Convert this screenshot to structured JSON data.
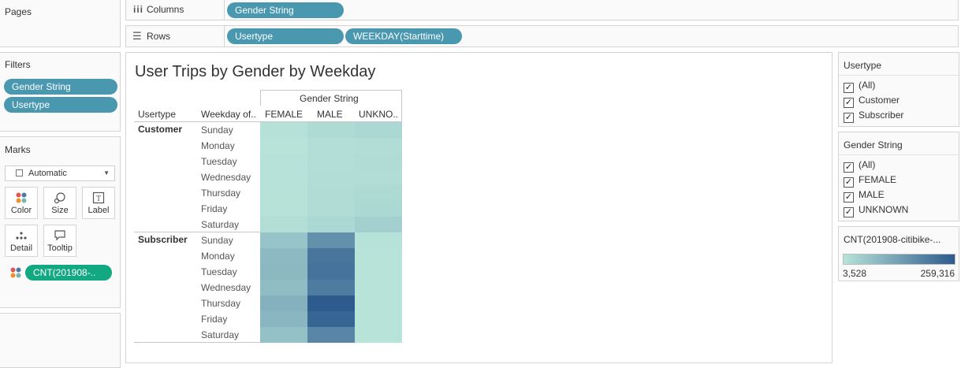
{
  "pages": {
    "title": "Pages"
  },
  "columns_shelf": {
    "label": "Columns",
    "pills": [
      "Gender String"
    ]
  },
  "rows_shelf": {
    "label": "Rows",
    "pills": [
      "Usertype",
      "WEEKDAY(Starttime)"
    ]
  },
  "filters": {
    "title": "Filters",
    "pills": [
      "Gender String",
      "Usertype"
    ]
  },
  "marks": {
    "title": "Marks",
    "mark_type": "Automatic",
    "buttons": [
      "Color",
      "Size",
      "Label",
      "Detail",
      "Tooltip"
    ],
    "field_pill": "CNT(201908-.."
  },
  "viz": {
    "title": "User Trips by Gender by Weekday",
    "column_header": "Gender String",
    "row_headers": [
      "Usertype",
      "Weekday of.."
    ],
    "columns": [
      "FEMALE",
      "MALE",
      "UNKNO.."
    ],
    "groups": [
      {
        "name": "Customer",
        "days": [
          "Sunday",
          "Monday",
          "Tuesday",
          "Wednesday",
          "Thursday",
          "Friday",
          "Saturday"
        ]
      },
      {
        "name": "Subscriber",
        "days": [
          "Sunday",
          "Monday",
          "Tuesday",
          "Wednesday",
          "Thursday",
          "Friday",
          "Saturday"
        ]
      }
    ]
  },
  "usertype_filter": {
    "title": "Usertype",
    "options": [
      "(All)",
      "Customer",
      "Subscriber"
    ]
  },
  "gender_filter": {
    "title": "Gender String",
    "options": [
      "(All)",
      "FEMALE",
      "MALE",
      "UNKNOWN"
    ]
  },
  "legend": {
    "title": "CNT(201908-citibike-...",
    "min_label": "3,528",
    "max_label": "259,316",
    "color_low": "#b7e3d9",
    "color_high": "#2d5b8e"
  },
  "chart_data": {
    "type": "heatmap",
    "title": "User Trips by Gender by Weekday",
    "x_field": "Gender String",
    "x": [
      "FEMALE",
      "MALE",
      "UNKNOWN"
    ],
    "y_fields": [
      "Usertype",
      "Weekday of Starttime"
    ],
    "y": [
      "Customer / Sunday",
      "Customer / Monday",
      "Customer / Tuesday",
      "Customer / Wednesday",
      "Customer / Thursday",
      "Customer / Friday",
      "Customer / Saturday",
      "Subscriber / Sunday",
      "Subscriber / Monday",
      "Subscriber / Tuesday",
      "Subscriber / Wednesday",
      "Subscriber / Thursday",
      "Subscriber / Friday",
      "Subscriber / Saturday"
    ],
    "color_range": [
      3528,
      259316
    ],
    "values": [
      [
        8000,
        18000,
        25000
      ],
      [
        4000,
        12000,
        15000
      ],
      [
        4500,
        13000,
        16000
      ],
      [
        4500,
        14000,
        14000
      ],
      [
        5500,
        16000,
        21000
      ],
      [
        6000,
        17000,
        24000
      ],
      [
        13000,
        25000,
        40000
      ],
      [
        62000,
        160000,
        5000
      ],
      [
        82000,
        210000,
        4000
      ],
      [
        84000,
        215000,
        4000
      ],
      [
        75000,
        198000,
        4000
      ],
      [
        98000,
        259316,
        4200
      ],
      [
        88000,
        240000,
        4200
      ],
      [
        68000,
        178000,
        3528
      ]
    ]
  }
}
